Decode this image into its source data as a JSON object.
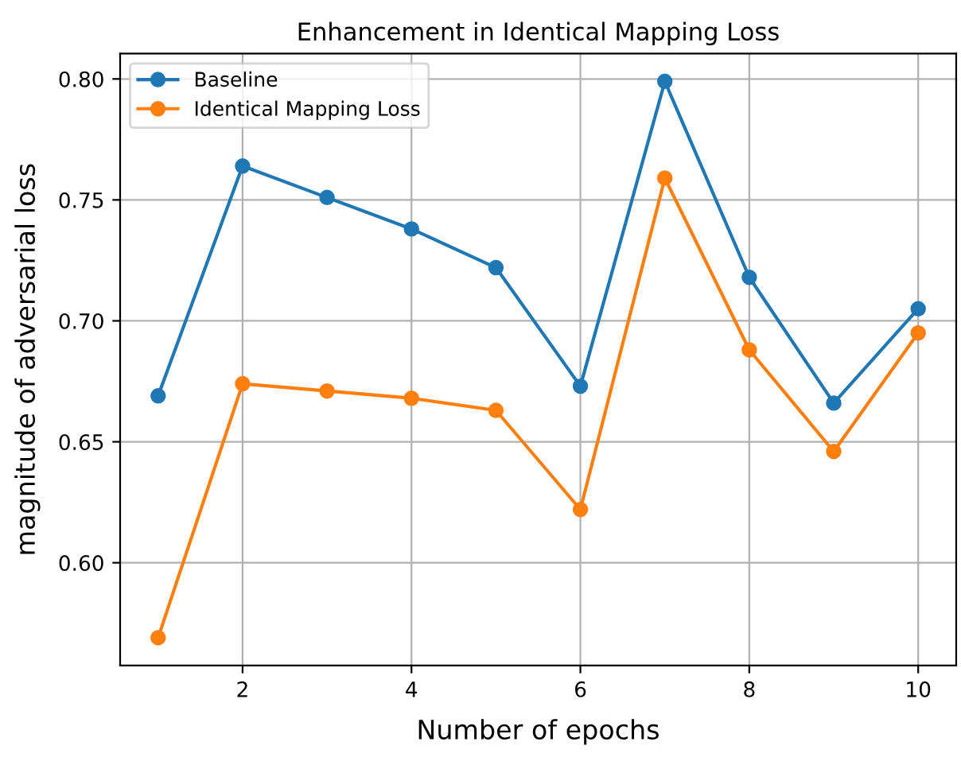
{
  "chart_data": {
    "type": "line",
    "title": "Enhancement in Identical Mapping Loss",
    "xlabel": "Number of epochs",
    "ylabel": "magnitude of adversarial loss",
    "x": [
      1,
      2,
      3,
      4,
      5,
      6,
      7,
      8,
      9,
      10
    ],
    "series": [
      {
        "name": "Baseline",
        "color": "#1f77b4",
        "values": [
          0.669,
          0.764,
          0.751,
          0.738,
          0.722,
          0.673,
          0.799,
          0.718,
          0.666,
          0.705
        ]
      },
      {
        "name": "Identical Mapping Loss",
        "color": "#ff7f0e",
        "values": [
          0.569,
          0.674,
          0.671,
          0.668,
          0.663,
          0.622,
          0.759,
          0.688,
          0.646,
          0.695
        ]
      }
    ],
    "xlim": [
      0.55,
      10.45
    ],
    "ylim": [
      0.5575,
      0.8105
    ],
    "xticks": [
      2,
      4,
      6,
      8,
      10
    ],
    "yticks": [
      {
        "value": 0.6,
        "label": "0.60"
      },
      {
        "value": 0.65,
        "label": "0.65"
      },
      {
        "value": 0.7,
        "label": "0.70"
      },
      {
        "value": 0.75,
        "label": "0.75"
      },
      {
        "value": 0.8,
        "label": "0.80"
      }
    ],
    "grid": true,
    "legend": "top left",
    "marker": "circle",
    "line_style": "solid"
  }
}
